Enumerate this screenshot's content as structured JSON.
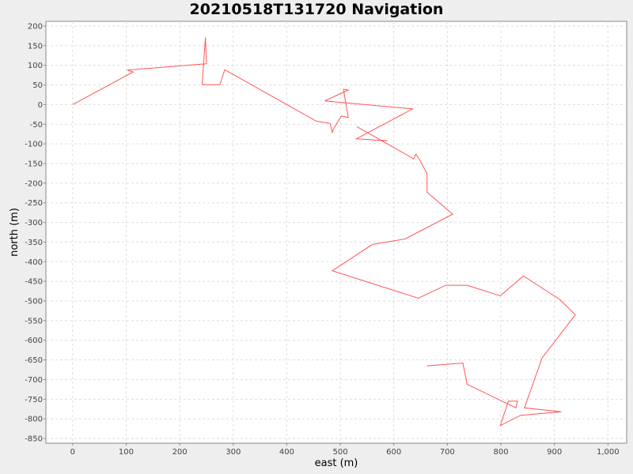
{
  "chart_data": {
    "type": "line",
    "title": "20210518T131720 Navigation",
    "xlabel": "east (m)",
    "ylabel": "north (m)",
    "xlim": [
      -50,
      1035
    ],
    "ylim": [
      -862,
      212
    ],
    "xticks": [
      0,
      100,
      200,
      300,
      400,
      500,
      600,
      700,
      800,
      900,
      1000
    ],
    "xtick_labels": [
      "0",
      "100",
      "200",
      "300",
      "400",
      "500",
      "600",
      "700",
      "800",
      "900",
      "1,000"
    ],
    "yticks": [
      200,
      150,
      100,
      50,
      0,
      -50,
      -100,
      -150,
      -200,
      -250,
      -300,
      -350,
      -400,
      -450,
      -500,
      -550,
      -600,
      -650,
      -700,
      -750,
      -800,
      -850
    ],
    "grid": true,
    "legend": "none",
    "line_color": "#ff5555",
    "series": [
      {
        "x": [
          0,
          113,
          102,
          250,
          248,
          242,
          275,
          284,
          455,
          481,
          485,
          488,
          502,
          515,
          506,
          515,
          472,
          473,
          635,
          530,
          588,
          575,
          531,
          637,
          641,
          648,
          662,
          662,
          710,
          621,
          560,
          485,
          646,
          697,
          737,
          799,
          842,
          910,
          939,
          877,
          844,
          913,
          837,
          799,
          814,
          831,
          828,
          737,
          729,
          662
        ],
        "y": [
          0,
          83,
          88,
          104,
          171,
          51,
          51,
          89,
          -42,
          -48,
          -71,
          -60,
          -29,
          -33,
          39,
          37,
          10,
          9,
          -11,
          -87,
          -92,
          -90,
          -56,
          -138,
          -126,
          -140,
          -176,
          -223,
          -279,
          -342,
          -356,
          -423,
          -493,
          -460,
          -460,
          -487,
          -436,
          -496,
          -535,
          -645,
          -772,
          -782,
          -791,
          -817,
          -755,
          -755,
          -772,
          -712,
          -658,
          -665
        ]
      }
    ]
  }
}
